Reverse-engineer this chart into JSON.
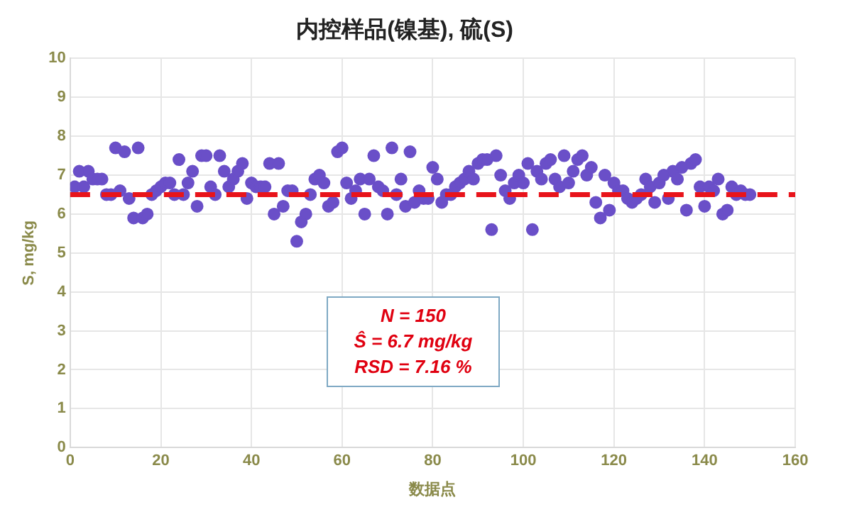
{
  "chart_data": {
    "type": "scatter",
    "title": "内控样品(镍基), 硫(S)",
    "xlabel": "数据点",
    "ylabel": "S, mg/kg",
    "x": [
      1,
      2,
      3,
      4,
      5,
      6,
      7,
      8,
      9,
      10,
      11,
      12,
      13,
      14,
      15,
      16,
      17,
      18,
      19,
      20,
      21,
      22,
      23,
      24,
      25,
      26,
      27,
      28,
      29,
      30,
      31,
      32,
      33,
      34,
      35,
      36,
      37,
      38,
      39,
      40,
      41,
      42,
      43,
      44,
      45,
      46,
      47,
      48,
      49,
      50,
      51,
      52,
      53,
      54,
      55,
      56,
      57,
      58,
      59,
      60,
      61,
      62,
      63,
      64,
      65,
      66,
      67,
      68,
      69,
      70,
      71,
      72,
      73,
      74,
      75,
      76,
      77,
      78,
      79,
      80,
      81,
      82,
      83,
      84,
      85,
      86,
      87,
      88,
      89,
      90,
      91,
      92,
      93,
      94,
      95,
      96,
      97,
      98,
      99,
      100,
      101,
      102,
      103,
      104,
      105,
      106,
      107,
      108,
      109,
      110,
      111,
      112,
      113,
      114,
      115,
      116,
      117,
      118,
      119,
      120,
      121,
      122,
      123,
      124,
      125,
      126,
      127,
      128,
      129,
      130,
      131,
      132,
      133,
      134,
      135,
      136,
      137,
      138,
      139,
      140,
      141,
      142,
      143,
      144,
      145,
      146,
      147,
      148,
      149,
      150
    ],
    "series": [
      {
        "color": "#6a4fc8",
        "values": [
          6.7,
          7.1,
          6.7,
          7.1,
          6.9,
          6.9,
          6.9,
          6.5,
          6.5,
          7.7,
          6.6,
          7.6,
          6.4,
          5.9,
          7.7,
          5.9,
          6.0,
          6.5,
          6.6,
          6.7,
          6.8,
          6.8,
          6.5,
          7.4,
          6.5,
          6.8,
          7.1,
          6.2,
          7.5,
          7.5,
          6.7,
          6.5,
          7.5,
          7.1,
          6.7,
          6.9,
          7.1,
          7.3,
          6.4,
          6.8,
          6.7,
          6.7,
          6.7,
          7.3,
          6.0,
          7.3,
          6.2,
          6.6,
          6.6,
          5.3,
          5.8,
          6.0,
          6.5,
          6.9,
          7.0,
          6.8,
          6.2,
          6.3,
          7.6,
          7.7,
          6.8,
          6.4,
          6.6,
          6.9,
          6.0,
          6.9,
          7.5,
          6.7,
          6.6,
          6.0,
          7.7,
          6.5,
          6.9,
          6.2,
          7.6,
          6.3,
          6.6,
          6.4,
          6.4,
          7.2,
          6.9,
          6.3,
          6.5,
          6.5,
          6.7,
          6.8,
          6.9,
          7.1,
          6.9,
          7.3,
          7.4,
          7.4,
          5.6,
          7.5,
          7.0,
          6.6,
          6.4,
          6.8,
          7.0,
          6.8,
          7.3,
          5.6,
          7.1,
          6.9,
          7.3,
          7.4,
          6.9,
          6.7,
          7.5,
          6.8,
          7.1,
          7.4,
          7.5,
          7.0,
          7.2,
          6.3,
          5.9,
          7.0,
          6.1,
          6.8,
          6.6,
          6.6,
          6.4,
          6.3,
          6.4,
          6.5,
          6.9,
          6.7,
          6.3,
          6.8,
          7.0,
          6.4,
          7.1,
          6.9,
          7.2,
          6.1,
          7.3,
          7.4,
          6.7,
          6.2,
          6.7,
          6.6,
          6.9,
          6.0,
          6.1,
          6.7,
          6.5,
          6.6,
          6.5,
          6.5
        ]
      }
    ],
    "xlim": [
      0,
      160
    ],
    "xticks": [
      0,
      20,
      40,
      60,
      80,
      100,
      120,
      140,
      160
    ],
    "ylim": [
      0,
      10
    ],
    "yticks": [
      0,
      1,
      2,
      3,
      4,
      5,
      6,
      7,
      8,
      9,
      10
    ],
    "grid": true,
    "legend": false,
    "marker": "circle",
    "ref_lines": [
      {
        "axis": "y",
        "value": 6.5,
        "color": "#e8141b",
        "line_style": "dashed"
      }
    ],
    "annotations": [
      "N = 150",
      "Ŝ = 6.7 mg/kg",
      "RSD = 7.16 %"
    ]
  }
}
